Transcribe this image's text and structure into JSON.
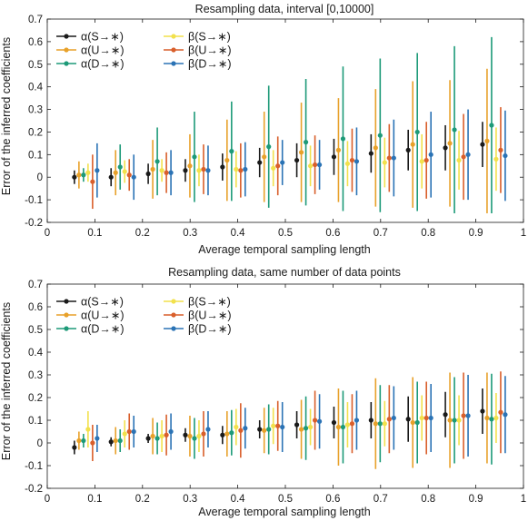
{
  "chart_data": [
    {
      "type": "scatter",
      "title": "Resampling data, interval [0,10000]",
      "xlabel": "Average temporal sampling length",
      "ylabel": "Error of the inferred coefficients",
      "xlim": [
        0,
        1
      ],
      "ylim": [
        -0.2,
        0.7
      ],
      "xticks": [
        "0",
        "0.1",
        "0.2",
        "0.3",
        "0.4",
        "0.5",
        "0.6",
        "0.7",
        "0.8",
        "0.9",
        "1"
      ],
      "yticks": [
        "-0.2",
        "-0.1",
        "0",
        "0.1",
        "0.2",
        "0.3",
        "0.4",
        "0.5",
        "0.6",
        "0.7"
      ],
      "grid": false,
      "legend_position": "top-left",
      "x": [
        0.078,
        0.155,
        0.233,
        0.311,
        0.389,
        0.467,
        0.545,
        0.623,
        0.701,
        0.779,
        0.857,
        0.935
      ],
      "series": [
        {
          "name": "α(S→∗)",
          "color": "#1a1a1a",
          "values": [
            0.0,
            0.0,
            0.015,
            0.03,
            0.045,
            0.065,
            0.075,
            0.09,
            0.105,
            0.12,
            0.13,
            0.145
          ],
          "err": [
            0.03,
            0.04,
            0.045,
            0.05,
            0.06,
            0.065,
            0.075,
            0.08,
            0.085,
            0.09,
            0.1,
            0.1
          ]
        },
        {
          "name": "α(U→∗)",
          "color": "#e8a12a",
          "values": [
            0.01,
            0.02,
            0.035,
            0.05,
            0.075,
            0.09,
            0.11,
            0.12,
            0.13,
            0.145,
            0.15,
            0.16
          ],
          "err": [
            0.06,
            0.1,
            0.13,
            0.14,
            0.18,
            0.2,
            0.22,
            0.23,
            0.26,
            0.28,
            0.28,
            0.32
          ]
        },
        {
          "name": "α(D→∗)",
          "color": "#1d9a78",
          "values": [
            0.01,
            0.045,
            0.07,
            0.09,
            0.115,
            0.135,
            0.155,
            0.17,
            0.185,
            0.2,
            0.21,
            0.23
          ],
          "err": [
            0.03,
            0.1,
            0.15,
            0.2,
            0.22,
            0.27,
            0.28,
            0.32,
            0.34,
            0.35,
            0.37,
            0.39
          ]
        },
        {
          "name": "β(S→∗)",
          "color": "#f2e14c",
          "values": [
            0.02,
            0.025,
            0.03,
            0.03,
            0.035,
            0.04,
            0.05,
            0.06,
            0.065,
            0.07,
            0.075,
            0.08
          ],
          "err": [
            0.04,
            0.05,
            0.05,
            0.07,
            0.08,
            0.08,
            0.09,
            0.1,
            0.11,
            0.12,
            0.13,
            0.14
          ]
        },
        {
          "name": "β(U→∗)",
          "color": "#d95f2b",
          "values": [
            -0.02,
            0.01,
            0.02,
            0.035,
            0.03,
            0.05,
            0.055,
            0.075,
            0.085,
            0.075,
            0.09,
            0.12
          ]
        },
        {
          "name": "β(D→∗)",
          "color": "#2b73b5",
          "values": [
            0.03,
            0.0,
            0.02,
            0.03,
            0.035,
            0.065,
            0.055,
            0.07,
            0.085,
            0.1,
            0.1,
            0.095
          ],
          "err": [
            0.12,
            0.1,
            0.1,
            0.11,
            0.12,
            0.1,
            0.11,
            0.15,
            0.17,
            0.19,
            0.2,
            0.2
          ]
        }
      ],
      "err_uncolored_note": "",
      "beta_U_err": [
        0.12,
        0.07,
        0.09,
        0.11,
        0.12,
        0.13,
        0.13,
        0.14,
        0.15,
        0.17,
        0.19,
        0.19
      ]
    },
    {
      "type": "scatter",
      "title": "Resampling data, same number of data points",
      "xlabel": "Average temporal sampling length",
      "ylabel": "Error of the inferred coefficients",
      "xlim": [
        0,
        1
      ],
      "ylim": [
        -0.2,
        0.7
      ],
      "xticks": [
        "0",
        "0.1",
        "0.2",
        "0.3",
        "0.4",
        "0.5",
        "0.6",
        "0.7",
        "0.8",
        "0.9",
        "1"
      ],
      "yticks": [
        "-0.2",
        "-0.1",
        "0",
        "0.1",
        "0.2",
        "0.3",
        "0.4",
        "0.5",
        "0.6",
        "0.7"
      ],
      "grid": false,
      "legend_position": "top-left",
      "x": [
        0.078,
        0.155,
        0.233,
        0.311,
        0.389,
        0.467,
        0.545,
        0.623,
        0.701,
        0.779,
        0.857,
        0.935
      ],
      "series": [
        {
          "name": "α(S→∗)",
          "color": "#1a1a1a",
          "values": [
            -0.02,
            0.005,
            0.02,
            0.035,
            0.035,
            0.06,
            0.08,
            0.09,
            0.1,
            0.105,
            0.125,
            0.14
          ],
          "err": [
            0.03,
            0.02,
            0.02,
            0.03,
            0.04,
            0.04,
            0.06,
            0.07,
            0.08,
            0.1,
            0.1,
            0.1
          ]
        },
        {
          "name": "α(U→∗)",
          "color": "#e8a12a",
          "values": [
            0.01,
            0.01,
            0.03,
            0.03,
            0.04,
            0.055,
            0.06,
            0.07,
            0.085,
            0.09,
            0.1,
            0.11
          ],
          "err": [
            0.04,
            0.06,
            0.08,
            0.09,
            0.1,
            0.1,
            0.13,
            0.17,
            0.2,
            0.2,
            0.21,
            0.2
          ]
        },
        {
          "name": "α(D→∗)",
          "color": "#1d9a78",
          "values": [
            0.01,
            0.01,
            0.02,
            0.02,
            0.045,
            0.06,
            0.065,
            0.07,
            0.085,
            0.09,
            0.1,
            0.105
          ],
          "err": [
            0.03,
            0.05,
            0.07,
            0.09,
            0.1,
            0.11,
            0.14,
            0.16,
            0.17,
            0.18,
            0.19,
            0.2
          ]
        },
        {
          "name": "β(S→∗)",
          "color": "#f2e14c",
          "values": [
            0.06,
            0.04,
            0.03,
            0.03,
            0.07,
            0.075,
            0.07,
            0.08,
            0.085,
            0.11,
            0.1,
            0.11
          ],
          "err": [
            0.08,
            0.06,
            0.07,
            0.07,
            0.08,
            0.08,
            0.08,
            0.1,
            0.1,
            0.1,
            0.11,
            0.11
          ]
        },
        {
          "name": "β(U→∗)",
          "color": "#d95f2b",
          "values": [
            0.0,
            0.05,
            0.035,
            0.04,
            0.055,
            0.075,
            0.1,
            0.085,
            0.105,
            0.11,
            0.12,
            0.135
          ],
          "err": [
            0.08,
            0.08,
            0.09,
            0.1,
            0.12,
            0.11,
            0.13,
            0.13,
            0.15,
            0.16,
            0.19,
            0.18
          ]
        },
        {
          "name": "β(D→∗)",
          "color": "#2b73b5",
          "values": [
            0.02,
            0.05,
            0.05,
            0.06,
            0.065,
            0.07,
            0.095,
            0.1,
            0.11,
            0.11,
            0.12,
            0.125
          ],
          "err": [
            0.06,
            0.07,
            0.08,
            0.08,
            0.09,
            0.11,
            0.12,
            0.13,
            0.14,
            0.15,
            0.18,
            0.17
          ]
        }
      ],
      "beta_U_err": [
        0.08,
        0.08,
        0.09,
        0.1,
        0.12,
        0.11,
        0.13,
        0.13,
        0.15,
        0.16,
        0.19,
        0.18
      ]
    }
  ]
}
